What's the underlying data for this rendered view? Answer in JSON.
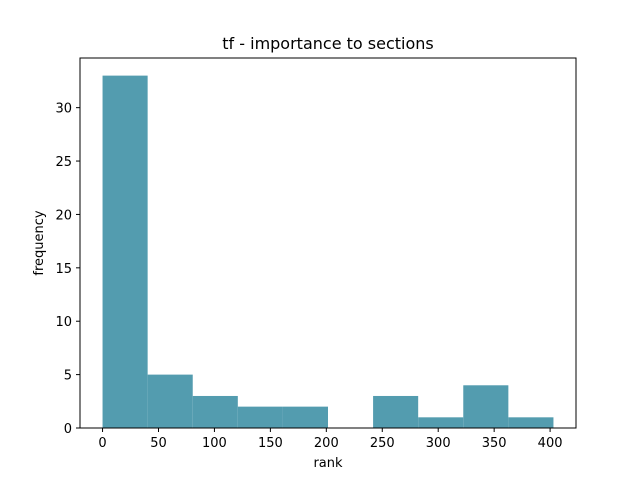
{
  "chart_data": {
    "type": "bar",
    "title": "tf - importance to sections",
    "xlabel": "rank",
    "ylabel": "frequency",
    "bins": [
      {
        "x0": 0,
        "x1": 40.3,
        "count": 33
      },
      {
        "x0": 40.3,
        "x1": 80.6,
        "count": 5
      },
      {
        "x0": 80.6,
        "x1": 120.9,
        "count": 3
      },
      {
        "x0": 120.9,
        "x1": 161.2,
        "count": 2
      },
      {
        "x0": 161.2,
        "x1": 201.5,
        "count": 2
      },
      {
        "x0": 201.5,
        "x1": 241.8,
        "count": 0
      },
      {
        "x0": 241.8,
        "x1": 282.1,
        "count": 3
      },
      {
        "x0": 282.1,
        "x1": 322.4,
        "count": 1
      },
      {
        "x0": 322.4,
        "x1": 362.7,
        "count": 4
      },
      {
        "x0": 362.7,
        "x1": 403,
        "count": 1
      }
    ],
    "xticks": [
      0,
      50,
      100,
      150,
      200,
      250,
      300,
      350,
      400
    ],
    "yticks": [
      0,
      5,
      10,
      15,
      20,
      25,
      30
    ],
    "xlim": [
      -20.15,
      423.15
    ],
    "ylim": [
      0,
      34.65
    ],
    "bar_color": "#539caf",
    "grid": false,
    "legend": "none"
  }
}
